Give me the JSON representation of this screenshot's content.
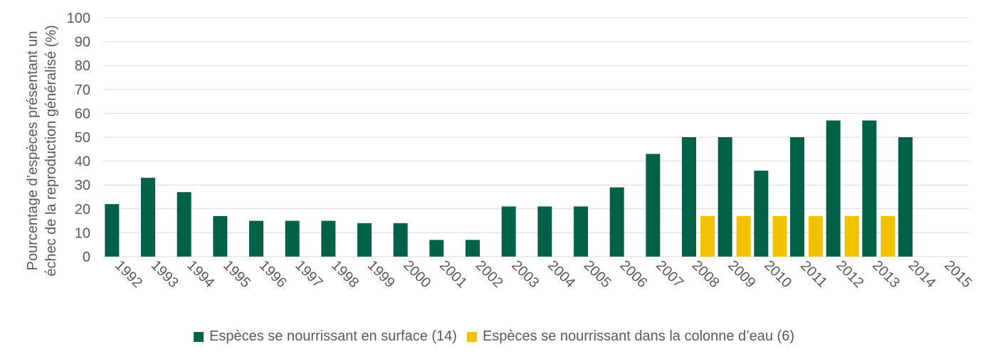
{
  "chart_data": {
    "type": "bar",
    "categories": [
      "1992",
      "1993",
      "1994",
      "1995",
      "1996",
      "1997",
      "1998",
      "1999",
      "2000",
      "2001",
      "2002",
      "2003",
      "2004",
      "2005",
      "2006",
      "2007",
      "2008",
      "2009",
      "2010",
      "2011",
      "2012",
      "2013",
      "2014",
      "2015"
    ],
    "series": [
      {
        "name": "Espèces se nourrissant en surface (14)",
        "color": "#006147",
        "values": [
          22,
          33,
          27,
          17,
          15,
          15,
          15,
          14,
          14,
          7,
          7,
          21,
          21,
          21,
          29,
          43,
          50,
          50,
          36,
          50,
          57,
          57,
          50,
          null
        ]
      },
      {
        "name": "Espèces se nourrissant dans la colonne d’eau (6)",
        "color": "#F2C200",
        "values": [
          null,
          null,
          null,
          null,
          null,
          null,
          null,
          null,
          null,
          null,
          null,
          null,
          null,
          null,
          null,
          null,
          17,
          17,
          17,
          17,
          17,
          17,
          null,
          null
        ]
      }
    ],
    "ylabel_line1": "Pourcentage d’espèces présentant un",
    "ylabel_line2": "échec de la reproduction généralisé (%)",
    "ylim": [
      0,
      100
    ],
    "yticks": [
      0,
      10,
      20,
      30,
      40,
      50,
      60,
      70,
      80,
      90,
      100
    ],
    "grid": true,
    "legend": "bottom"
  }
}
